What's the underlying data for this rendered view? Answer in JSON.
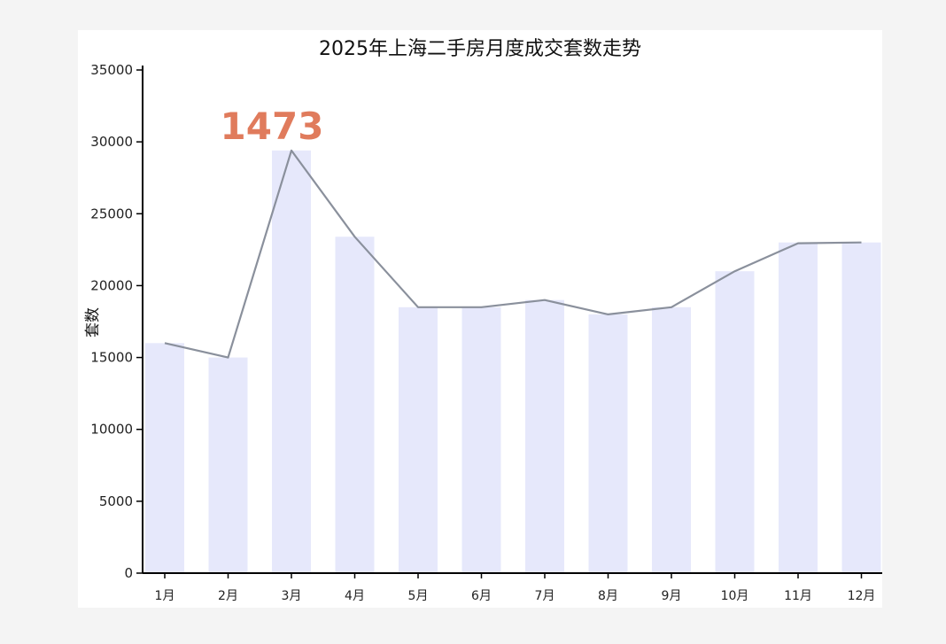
{
  "chart_data": {
    "type": "bar",
    "title": "2025年上海二手房月度成交套数走势",
    "xlabel": "",
    "ylabel": "套数",
    "categories": [
      "1月",
      "2月",
      "3月",
      "4月",
      "5月",
      "6月",
      "7月",
      "8月",
      "9月",
      "10月",
      "11月",
      "12月"
    ],
    "series": [
      {
        "type": "bar",
        "values": [
          16000,
          15000,
          29400,
          23400,
          18500,
          18500,
          19000,
          18000,
          18500,
          21000,
          23000,
          23000
        ]
      },
      {
        "type": "line",
        "values": [
          16000,
          15000,
          29400,
          23400,
          18500,
          18500,
          19000,
          18000,
          18500,
          21000,
          22950,
          23000
        ]
      }
    ],
    "ylim": [
      0,
      35000
    ],
    "yticks": [
      0,
      5000,
      10000,
      15000,
      20000,
      25000,
      30000,
      35000
    ],
    "grid": false,
    "annotations": [
      {
        "text": "1473",
        "category": "3月",
        "color": "#e07b5c"
      }
    ],
    "colors": {
      "bar": "#e6e8fb",
      "line": "#8a909c",
      "axis": "#000000"
    }
  }
}
